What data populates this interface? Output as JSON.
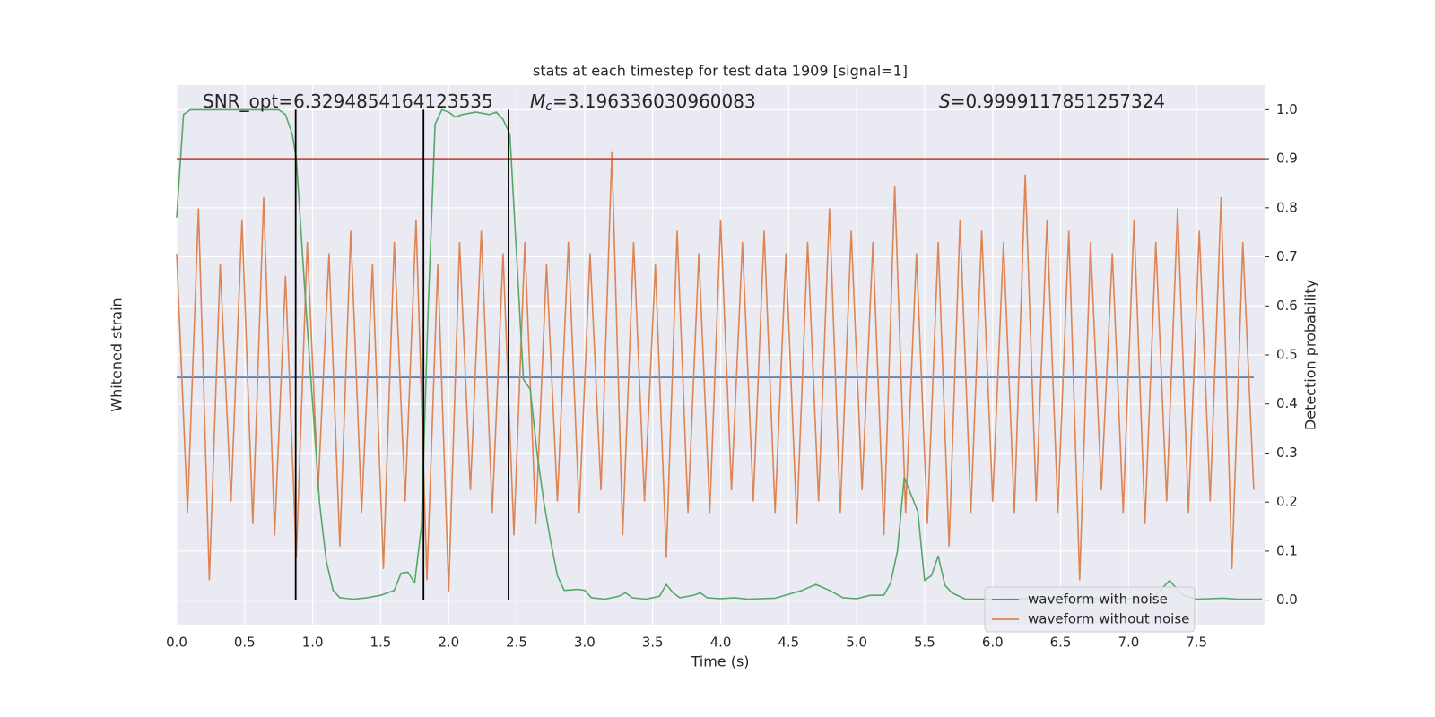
{
  "chart_data": {
    "type": "line",
    "title": "stats at each timestep for test data 1909 [signal=1]",
    "xlabel": "Time (s)",
    "ylabel": "Whitened strain",
    "y2label": "Detection probability",
    "annotations": [
      {
        "text": "SNR_opt=6.3294854164123535"
      },
      {
        "symbol": "M",
        "subscript": "c",
        "text": "=3.196336030960083"
      },
      {
        "symbol": "S",
        "text": "=0.9999117851257324"
      }
    ],
    "xlim": [
      0,
      8.0
    ],
    "xticks": [
      {
        "value": 0,
        "label": "0.0"
      },
      0.5,
      {
        "value": 1,
        "label": "1.0"
      },
      1.5,
      {
        "value": 2,
        "label": "2.0"
      },
      2.5,
      {
        "value": 3,
        "label": "3.0"
      },
      3.5,
      {
        "value": 4,
        "label": "4.0"
      },
      4.5,
      {
        "value": 5,
        "label": "5.0"
      },
      5.5,
      {
        "value": 6,
        "label": "6.0"
      },
      6.5,
      {
        "value": 7,
        "label": "7.0"
      },
      7.5
    ],
    "ylim": [
      -1.1,
      1.3
    ],
    "y2lim": [
      -0.05,
      1.05
    ],
    "y2ticks": [
      {
        "value": 0,
        "label": "0.0"
      },
      0.1,
      0.2,
      0.3,
      0.4,
      0.5,
      0.6,
      0.7,
      0.8,
      0.9,
      {
        "value": 1,
        "label": "1.0"
      }
    ],
    "grid": true,
    "legend": "lower right",
    "hline": {
      "value": 0.9,
      "color": "#c0392b",
      "axis": "y2"
    },
    "vlines": {
      "values": [
        0.875,
        1.815,
        2.44
      ],
      "color": "#000000",
      "span": [
        0,
        1
      ]
    },
    "series": [
      {
        "name": "waveform with noise",
        "color": "#4c72b0",
        "x": [
          0,
          7.92
        ],
        "values": [
          0,
          0
        ]
      },
      {
        "name": "waveform without noise",
        "color": "#dd8452",
        "x": [
          0,
          0.08,
          0.16,
          0.24,
          0.32,
          0.4,
          0.48,
          0.56,
          0.64,
          0.72,
          0.8,
          0.88,
          0.96,
          1.04,
          1.12,
          1.2,
          1.28,
          1.36,
          1.44,
          1.52,
          1.6,
          1.68,
          1.76,
          1.84,
          1.92,
          2,
          2.08,
          2.16,
          2.24,
          2.32,
          2.4,
          2.48,
          2.56,
          2.64,
          2.72,
          2.8,
          2.88,
          2.96,
          3.04,
          3.12,
          3.2,
          3.28,
          3.36,
          3.44,
          3.52,
          3.6,
          3.68,
          3.76,
          3.84,
          3.92,
          4,
          4.08,
          4.16,
          4.24,
          4.32,
          4.4,
          4.48,
          4.56,
          4.64,
          4.72,
          4.8,
          4.88,
          4.96,
          5.04,
          5.12,
          5.2,
          5.28,
          5.36,
          5.44,
          5.52,
          5.6,
          5.68,
          5.76,
          5.84,
          5.92,
          6,
          6.08,
          6.16,
          6.24,
          6.32,
          6.4,
          6.48,
          6.56,
          6.64,
          6.72,
          6.8,
          6.88,
          6.96,
          7.04,
          7.12,
          7.2,
          7.28,
          7.36,
          7.44,
          7.52,
          7.6,
          7.68,
          7.76,
          7.84,
          7.92
        ],
        "values": [
          0.55,
          -0.6,
          0.75,
          -0.9,
          0.5,
          -0.55,
          0.7,
          -0.65,
          0.8,
          -0.7,
          0.45,
          -0.8,
          0.6,
          -0.5,
          0.55,
          -0.75,
          0.65,
          -0.6,
          0.5,
          -0.85,
          0.6,
          -0.55,
          0.7,
          -0.9,
          0.5,
          -0.95,
          0.6,
          -0.5,
          0.65,
          -0.6,
          0.55,
          -0.7,
          0.6,
          -0.65,
          0.5,
          -0.55,
          0.6,
          -0.6,
          0.55,
          -0.5,
          1.0,
          -0.7,
          0.6,
          -0.55,
          0.5,
          -0.8,
          0.65,
          -0.6,
          0.55,
          -0.6,
          0.7,
          -0.5,
          0.6,
          -0.55,
          0.65,
          -0.6,
          0.55,
          -0.65,
          0.6,
          -0.55,
          0.75,
          -0.6,
          0.65,
          -0.5,
          0.6,
          -0.7,
          0.85,
          -0.6,
          0.55,
          -0.65,
          0.6,
          -0.75,
          0.7,
          -0.6,
          0.65,
          -0.55,
          0.6,
          -0.6,
          0.9,
          -0.55,
          0.7,
          -0.6,
          0.65,
          -0.9,
          0.6,
          -0.5,
          0.55,
          -0.6,
          0.7,
          -0.65,
          0.6,
          -0.55,
          0.75,
          -0.6,
          0.65,
          -0.55,
          0.8,
          -0.85,
          0.6,
          -0.5
        ]
      },
      {
        "color": "#55a868",
        "axis": "y2",
        "x": [
          0,
          0.05,
          0.1,
          0.2,
          0.75,
          0.8,
          0.85,
          0.88,
          0.95,
          1,
          1.05,
          1.1,
          1.15,
          1.2,
          1.3,
          1.4,
          1.5,
          1.6,
          1.65,
          1.7,
          1.75,
          1.8,
          1.85,
          1.9,
          1.95,
          2,
          2.05,
          2.1,
          2.2,
          2.3,
          2.35,
          2.4,
          2.45,
          2.5,
          2.55,
          2.6,
          2.65,
          2.7,
          2.75,
          2.8,
          2.85,
          2.95,
          3,
          3.05,
          3.15,
          3.25,
          3.3,
          3.35,
          3.45,
          3.55,
          3.6,
          3.65,
          3.7,
          3.8,
          3.85,
          3.9,
          4,
          4.1,
          4.2,
          4.4,
          4.5,
          4.6,
          4.7,
          4.8,
          4.9,
          5,
          5.1,
          5.2,
          5.25,
          5.3,
          5.35,
          5.45,
          5.5,
          5.55,
          5.6,
          5.65,
          5.7,
          5.8,
          6,
          6.5,
          7,
          7.2,
          7.3,
          7.4,
          7.5,
          7.7,
          7.8,
          7.98
        ],
        "values": [
          0.78,
          0.99,
          1.0,
          1.0,
          1.0,
          0.99,
          0.95,
          0.9,
          0.6,
          0.4,
          0.2,
          0.08,
          0.02,
          0.005,
          0.002,
          0.005,
          0.01,
          0.02,
          0.055,
          0.057,
          0.035,
          0.15,
          0.6,
          0.97,
          1.0,
          0.995,
          0.985,
          0.99,
          0.995,
          0.99,
          0.995,
          0.98,
          0.95,
          0.7,
          0.45,
          0.43,
          0.3,
          0.2,
          0.12,
          0.05,
          0.02,
          0.022,
          0.02,
          0.005,
          0.002,
          0.008,
          0.015,
          0.005,
          0.002,
          0.008,
          0.032,
          0.015,
          0.005,
          0.01,
          0.015,
          0.005,
          0.003,
          0.005,
          0.002,
          0.004,
          0.012,
          0.02,
          0.032,
          0.02,
          0.005,
          0.003,
          0.01,
          0.01,
          0.035,
          0.1,
          0.25,
          0.18,
          0.04,
          0.05,
          0.09,
          0.03,
          0.015,
          0.002,
          0.002,
          0.004,
          0.003,
          0.01,
          0.04,
          0.01,
          0.002,
          0.004,
          0.002,
          0.002
        ]
      }
    ]
  }
}
